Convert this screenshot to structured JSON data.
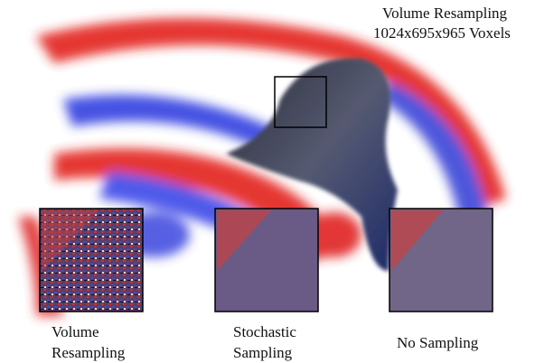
{
  "header": {
    "title": "Volume Resampling",
    "subtitle": "1024x695x965 Voxels"
  },
  "insets": [
    {
      "caption": [
        "Volume",
        "Resampling"
      ]
    },
    {
      "caption": [
        "Stochastic",
        "Sampling"
      ]
    },
    {
      "caption": [
        "No Sampling"
      ]
    }
  ]
}
